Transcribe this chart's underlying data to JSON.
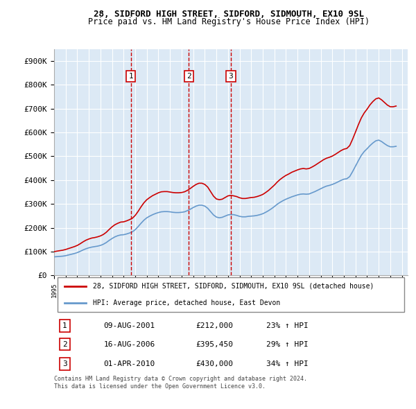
{
  "title_line1": "28, SIDFORD HIGH STREET, SIDFORD, SIDMOUTH, EX10 9SL",
  "title_line2": "Price paid vs. HM Land Registry's House Price Index (HPI)",
  "ylabel": "",
  "background_color": "#ffffff",
  "plot_bg_color": "#dce9f5",
  "grid_color": "#ffffff",
  "ylim": [
    0,
    950000
  ],
  "yticks": [
    0,
    100000,
    200000,
    300000,
    400000,
    500000,
    600000,
    700000,
    800000,
    900000
  ],
  "ytick_labels": [
    "£0",
    "£100K",
    "£200K",
    "£300K",
    "£400K",
    "£500K",
    "£600K",
    "£700K",
    "£800K",
    "£900K"
  ],
  "x_start_year": 1995,
  "x_end_year": 2025,
  "sale_dates": [
    "2001-08-09",
    "2006-08-16",
    "2010-04-01"
  ],
  "sale_prices": [
    212000,
    395450,
    430000
  ],
  "sale_labels": [
    "1",
    "2",
    "3"
  ],
  "sale_label_dates": [
    2001.6,
    2006.6,
    2010.25
  ],
  "vline_color": "#cc0000",
  "red_line_color": "#cc0000",
  "blue_line_color": "#6699cc",
  "legend_label_red": "28, SIDFORD HIGH STREET, SIDFORD, SIDMOUTH, EX10 9SL (detached house)",
  "legend_label_blue": "HPI: Average price, detached house, East Devon",
  "table_rows": [
    [
      "1",
      "09-AUG-2001",
      "£212,000",
      "23% ↑ HPI"
    ],
    [
      "2",
      "16-AUG-2006",
      "£395,450",
      "29% ↑ HPI"
    ],
    [
      "3",
      "01-APR-2010",
      "£430,000",
      "34% ↑ HPI"
    ]
  ],
  "footnote": "Contains HM Land Registry data © Crown copyright and database right 2024.\nThis data is licensed under the Open Government Licence v3.0.",
  "hpi_data_years": [
    1995.0,
    1995.25,
    1995.5,
    1995.75,
    1996.0,
    1996.25,
    1996.5,
    1996.75,
    1997.0,
    1997.25,
    1997.5,
    1997.75,
    1998.0,
    1998.25,
    1998.5,
    1998.75,
    1999.0,
    1999.25,
    1999.5,
    1999.75,
    2000.0,
    2000.25,
    2000.5,
    2000.75,
    2001.0,
    2001.25,
    2001.5,
    2001.75,
    2002.0,
    2002.25,
    2002.5,
    2002.75,
    2003.0,
    2003.25,
    2003.5,
    2003.75,
    2004.0,
    2004.25,
    2004.5,
    2004.75,
    2005.0,
    2005.25,
    2005.5,
    2005.75,
    2006.0,
    2006.25,
    2006.5,
    2006.75,
    2007.0,
    2007.25,
    2007.5,
    2007.75,
    2008.0,
    2008.25,
    2008.5,
    2008.75,
    2009.0,
    2009.25,
    2009.5,
    2009.75,
    2010.0,
    2010.25,
    2010.5,
    2010.75,
    2011.0,
    2011.25,
    2011.5,
    2011.75,
    2012.0,
    2012.25,
    2012.5,
    2012.75,
    2013.0,
    2013.25,
    2013.5,
    2013.75,
    2014.0,
    2014.25,
    2014.5,
    2014.75,
    2015.0,
    2015.25,
    2015.5,
    2015.75,
    2016.0,
    2016.25,
    2016.5,
    2016.75,
    2017.0,
    2017.25,
    2017.5,
    2017.75,
    2018.0,
    2018.25,
    2018.5,
    2018.75,
    2019.0,
    2019.25,
    2019.5,
    2019.75,
    2020.0,
    2020.25,
    2020.5,
    2020.75,
    2021.0,
    2021.25,
    2021.5,
    2021.75,
    2022.0,
    2022.25,
    2022.5,
    2022.75,
    2023.0,
    2023.25,
    2023.5,
    2023.75,
    2024.0,
    2024.25,
    2024.5
  ],
  "hpi_blue": [
    78000,
    79000,
    80000,
    81000,
    83000,
    86000,
    89000,
    92000,
    96000,
    101000,
    107000,
    112000,
    116000,
    119000,
    121000,
    123000,
    126000,
    131000,
    138000,
    147000,
    155000,
    162000,
    167000,
    170000,
    171000,
    174000,
    178000,
    183000,
    192000,
    205000,
    219000,
    232000,
    242000,
    249000,
    255000,
    260000,
    264000,
    267000,
    268000,
    268000,
    267000,
    265000,
    264000,
    264000,
    265000,
    267000,
    272000,
    278000,
    285000,
    291000,
    295000,
    295000,
    291000,
    282000,
    268000,
    254000,
    245000,
    242000,
    244000,
    249000,
    254000,
    256000,
    255000,
    252000,
    248000,
    246000,
    246000,
    248000,
    249000,
    250000,
    252000,
    255000,
    259000,
    265000,
    272000,
    280000,
    289000,
    299000,
    307000,
    314000,
    320000,
    325000,
    330000,
    334000,
    338000,
    341000,
    342000,
    341000,
    342000,
    347000,
    352000,
    358000,
    364000,
    370000,
    375000,
    378000,
    382000,
    387000,
    393000,
    399000,
    404000,
    406000,
    415000,
    436000,
    459000,
    482000,
    504000,
    520000,
    532000,
    545000,
    556000,
    565000,
    568000,
    562000,
    553000,
    545000,
    540000,
    540000,
    542000
  ],
  "hpi_red": [
    100000,
    102000,
    104000,
    106000,
    109000,
    113000,
    117000,
    121000,
    126000,
    133000,
    141000,
    148000,
    153000,
    157000,
    159000,
    162000,
    166000,
    172000,
    181000,
    193000,
    204000,
    213000,
    219000,
    224000,
    225000,
    229000,
    234000,
    240000,
    252000,
    269000,
    288000,
    305000,
    318000,
    327000,
    335000,
    341000,
    347000,
    351000,
    352000,
    352000,
    350000,
    348000,
    347000,
    347000,
    348000,
    351000,
    357000,
    365000,
    374000,
    382000,
    387000,
    387000,
    382000,
    371000,
    352000,
    333000,
    321000,
    318000,
    320000,
    327000,
    334000,
    336000,
    334000,
    331000,
    326000,
    323000,
    323000,
    325000,
    327000,
    328000,
    331000,
    335000,
    340000,
    348000,
    357000,
    368000,
    379000,
    392000,
    403000,
    412000,
    420000,
    426000,
    433000,
    438000,
    443000,
    447000,
    449000,
    447000,
    449000,
    455000,
    462000,
    470000,
    478000,
    486000,
    492000,
    496000,
    501000,
    508000,
    516000,
    524000,
    530000,
    533000,
    545000,
    572000,
    602000,
    633000,
    661000,
    682000,
    698000,
    716000,
    730000,
    741000,
    745000,
    737000,
    726000,
    715000,
    708000,
    708000,
    711000
  ]
}
